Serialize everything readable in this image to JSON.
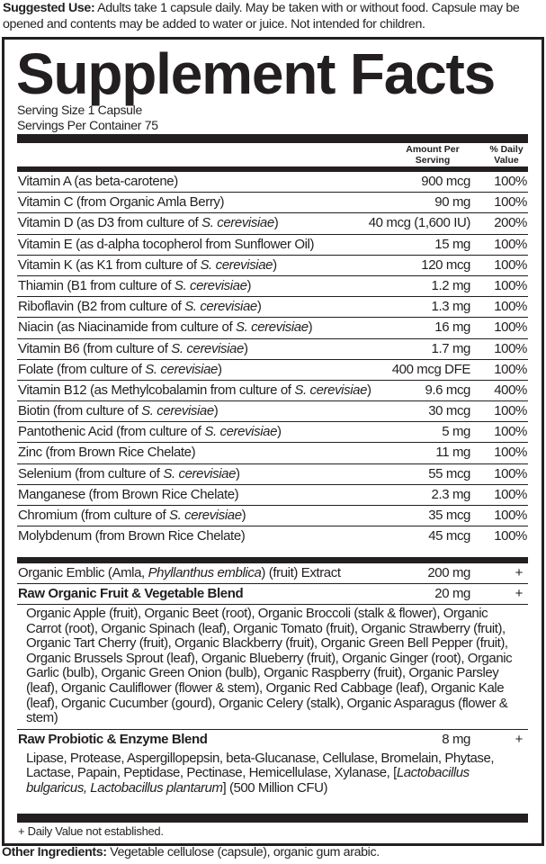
{
  "suggested_use": {
    "label": "Suggested Use:",
    "text": " Adults take 1 capsule daily. May be taken with or without food. Capsule may be opened and contents may be added to water or juice. Not intended for children."
  },
  "title": "Supplement Facts",
  "serving_size": "Serving Size 1 Capsule",
  "servings_per_container": "Servings Per Container 75",
  "headers": {
    "amount": "Amount Per Serving",
    "dv": "% Daily Value"
  },
  "nutrients": [
    {
      "name": "Vitamin A (as beta-carotene)",
      "italic": "",
      "suffix": "",
      "amount": "900 mcg",
      "dv": "100%"
    },
    {
      "name": "Vitamin C (from Organic Amla Berry)",
      "italic": "",
      "suffix": "",
      "amount": "90 mg",
      "dv": "100%"
    },
    {
      "name": "Vitamin D (as D3 from culture of ",
      "italic": "S. cerevisiae",
      "suffix": ")",
      "amount": "40 mcg (1,600 IU)",
      "dv": "200%"
    },
    {
      "name": "Vitamin E (as d-alpha tocopherol from Sunflower Oil)",
      "italic": "",
      "suffix": "",
      "amount": "15 mg",
      "dv": "100%"
    },
    {
      "name": "Vitamin K (as K1 from culture of ",
      "italic": "S. cerevisiae",
      "suffix": ")",
      "amount": "120 mcg",
      "dv": "100%"
    },
    {
      "name": "Thiamin (B1 from culture of ",
      "italic": "S. cerevisiae",
      "suffix": ")",
      "amount": "1.2 mg",
      "dv": "100%"
    },
    {
      "name": "Riboflavin (B2 from culture of ",
      "italic": "S. cerevisiae",
      "suffix": ")",
      "amount": "1.3 mg",
      "dv": "100%"
    },
    {
      "name": "Niacin (as Niacinamide from culture of ",
      "italic": "S. cerevisiae",
      "suffix": ")",
      "amount": "16 mg",
      "dv": "100%"
    },
    {
      "name": "Vitamin B6 (from culture of ",
      "italic": "S. cerevisiae",
      "suffix": ")",
      "amount": "1.7 mg",
      "dv": "100%"
    },
    {
      "name": "Folate (from culture of ",
      "italic": "S. cerevisiae",
      "suffix": ")",
      "amount": "400 mcg DFE",
      "dv": "100%"
    },
    {
      "name": "Vitamin B12 (as Methylcobalamin from culture of ",
      "italic": "S. cerevisiae",
      "suffix": ")",
      "amount": "9.6 mcg",
      "dv": "400%"
    },
    {
      "name": "Biotin (from culture of ",
      "italic": "S. cerevisiae",
      "suffix": ")",
      "amount": "30 mcg",
      "dv": "100%"
    },
    {
      "name": "Pantothenic Acid (from culture of ",
      "italic": "S. cerevisiae",
      "suffix": ")",
      "amount": "5 mg",
      "dv": "100%"
    },
    {
      "name": "Zinc (from Brown Rice Chelate)",
      "italic": "",
      "suffix": "",
      "amount": "11 mg",
      "dv": "100%"
    },
    {
      "name": "Selenium (from culture of ",
      "italic": "S. cerevisiae",
      "suffix": ")",
      "amount": "55 mcg",
      "dv": "100%"
    },
    {
      "name": "Manganese (from Brown Rice Chelate)",
      "italic": "",
      "suffix": "",
      "amount": "2.3 mg",
      "dv": "100%"
    },
    {
      "name": "Chromium (from culture of ",
      "italic": "S. cerevisiae",
      "suffix": ")",
      "amount": "35 mcg",
      "dv": "100%"
    },
    {
      "name": "Molybdenum (from Brown Rice Chelate)",
      "italic": "",
      "suffix": "",
      "amount": "45 mcg",
      "dv": "100%"
    }
  ],
  "emblic": {
    "name": "Organic Emblic (Amla, ",
    "italic": "Phyllanthus emblica",
    "suffix": ") (fruit) Extract",
    "amount": "200 mg",
    "dv": "+"
  },
  "fruit_blend": {
    "name": "Raw Organic Fruit & Vegetable Blend",
    "amount": "20 mg",
    "dv": "+",
    "ingredients": "Organic Apple (fruit), Organic Beet (root), Organic Broccoli (stalk & flower), Organic Carrot (root), Organic Spinach (leaf), Organic Tomato (fruit), Organic Strawberry (fruit), Organic Tart Cherry (fruit), Organic Blackberry (fruit), Organic Green Bell Pepper (fruit), Organic Brussels Sprout (leaf), Organic Blueberry (fruit), Organic Ginger (root), Organic Garlic (bulb), Organic Green Onion (bulb), Organic Raspberry (fruit), Organic Parsley (leaf), Organic Cauliflower (flower & stem), Organic Red Cabbage (leaf), Organic Kale (leaf), Organic Cucumber (gourd), Organic Celery (stalk), Organic Asparagus (flower & stem)"
  },
  "probiotic_blend": {
    "name": "Raw Probiotic & Enzyme Blend",
    "amount": "8 mg",
    "dv": "+",
    "ingredients": "Lipase, Protease, Aspergillopepsin, beta-Glucanase, Cellulase, Bromelain, Phytase, Lactase, Papain, Peptidase, Pectinase, Hemicellulase, Xylanase, ",
    "italic_open": "[",
    "italic": "Lactobacillus bulgaricus, Lactobacillus plantarum",
    "italic_close": "] (500 Million CFU)"
  },
  "footnote": "+ Daily Value not established.",
  "other_ingredients": {
    "label": "Other Ingredients:",
    "text": " Vegetable cellulose (capsule), organic gum arabic."
  }
}
